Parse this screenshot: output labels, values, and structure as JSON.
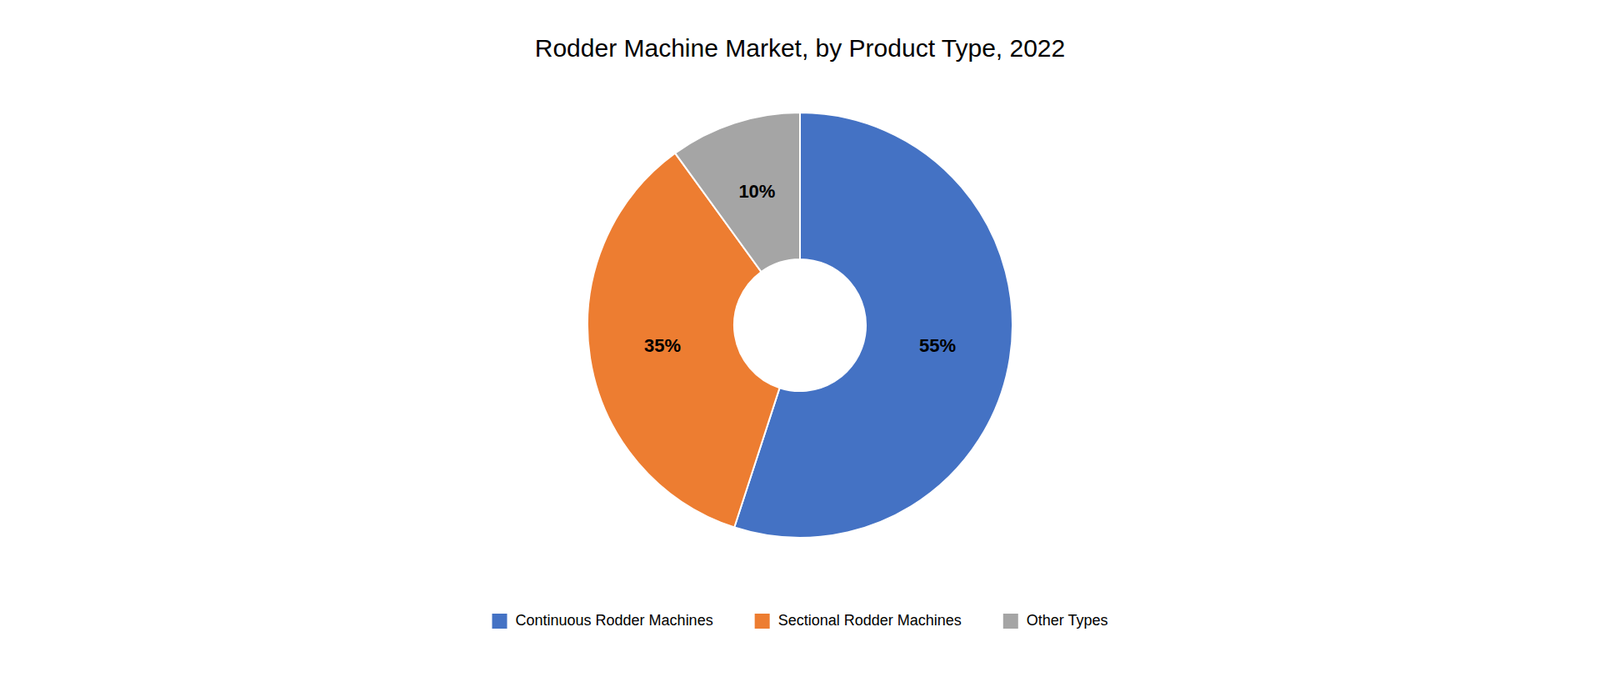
{
  "chart_data": {
    "type": "donut",
    "title": "Rodder Machine Market, by Product Type, 2022",
    "categories": [
      "Continuous Rodder Machines",
      "Sectional Rodder Machines",
      "Other Types"
    ],
    "values": [
      55,
      35,
      10
    ],
    "value_labels": [
      "55%",
      "35%",
      "10%"
    ],
    "colors": [
      "#4472C4",
      "#ED7D31",
      "#A5A5A5"
    ],
    "data_labels": true,
    "legend": "bottom"
  }
}
